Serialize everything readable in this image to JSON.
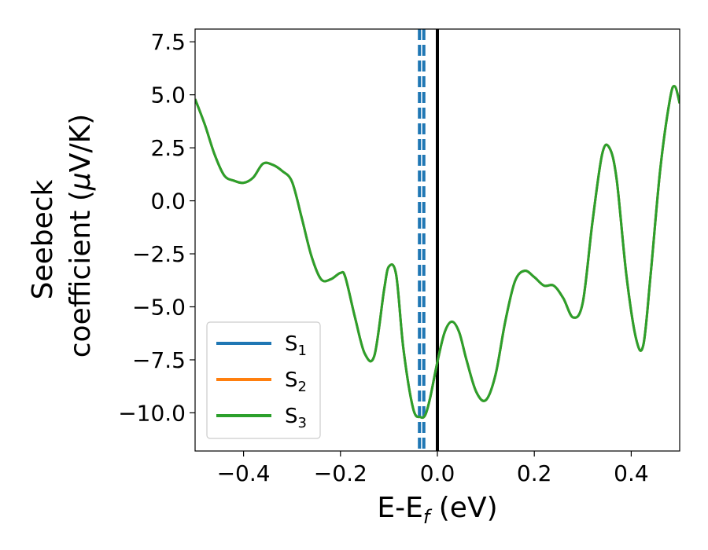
{
  "chart_data": {
    "type": "line",
    "xlabel": "E-E",
    "xlabel_sub": "f",
    "xlabel_unit": " (eV)",
    "ylabel_line1": "Seebeck",
    "ylabel_line2": "coefficient  (",
    "ylabel_mu": "μ",
    "ylabel_unit": "V/K)",
    "xlim": [
      -0.5,
      0.5
    ],
    "ylim": [
      -11.8,
      8.1
    ],
    "xticks": [
      -0.4,
      -0.2,
      0.0,
      0.2,
      0.4
    ],
    "xtick_labels": [
      "−0.4",
      "−0.2",
      "0.0",
      "0.2",
      "0.4"
    ],
    "yticks": [
      7.5,
      5.0,
      2.5,
      0.0,
      -2.5,
      -5.0,
      -7.5,
      -10.0
    ],
    "ytick_labels": [
      "7.5",
      "5.0",
      "2.5",
      "0.0",
      "−2.5",
      "−5.0",
      "−7.5",
      "−10.0"
    ],
    "legend_position": "lower-left",
    "vertical_lines": [
      {
        "x": -0.037,
        "style": "dashed",
        "color": "#1f77b4"
      },
      {
        "x": -0.028,
        "style": "dashed",
        "color": "#1f77b4"
      },
      {
        "x": 0.0,
        "style": "solid",
        "color": "#000000"
      }
    ],
    "x": [
      -0.5,
      -0.48,
      -0.46,
      -0.44,
      -0.42,
      -0.4,
      -0.38,
      -0.36,
      -0.34,
      -0.32,
      -0.3,
      -0.28,
      -0.26,
      -0.24,
      -0.22,
      -0.2,
      -0.19,
      -0.17,
      -0.15,
      -0.13,
      -0.11,
      -0.1,
      -0.085,
      -0.07,
      -0.05,
      -0.035,
      -0.025,
      -0.015,
      0.0,
      0.015,
      0.03,
      0.045,
      0.06,
      0.08,
      0.1,
      0.12,
      0.14,
      0.16,
      0.18,
      0.2,
      0.22,
      0.24,
      0.26,
      0.28,
      0.3,
      0.32,
      0.34,
      0.355,
      0.37,
      0.39,
      0.41,
      0.425,
      0.44,
      0.46,
      0.48,
      0.49,
      0.5
    ],
    "series": [
      {
        "name": "S",
        "sub": "1",
        "color": "#1f77b4",
        "values": [
          4.8,
          3.6,
          2.2,
          1.2,
          0.95,
          0.85,
          1.1,
          1.75,
          1.7,
          1.4,
          0.9,
          -0.8,
          -2.6,
          -3.7,
          -3.7,
          -3.4,
          -3.6,
          -5.5,
          -7.2,
          -7.3,
          -4.2,
          -3.1,
          -3.5,
          -7.0,
          -9.8,
          -10.2,
          -10.1,
          -9.3,
          -7.6,
          -6.2,
          -5.7,
          -6.2,
          -7.5,
          -9.0,
          -9.4,
          -8.2,
          -5.7,
          -3.8,
          -3.3,
          -3.6,
          -4.0,
          -4.0,
          -4.6,
          -5.5,
          -4.8,
          -1.0,
          2.2,
          2.5,
          1.0,
          -3.5,
          -6.5,
          -6.8,
          -3.5,
          1.5,
          4.8,
          5.4,
          4.6
        ]
      },
      {
        "name": "S",
        "sub": "2",
        "color": "#ff7f0e",
        "values": [
          4.8,
          3.6,
          2.2,
          1.2,
          0.95,
          0.85,
          1.1,
          1.75,
          1.7,
          1.4,
          0.9,
          -0.8,
          -2.6,
          -3.7,
          -3.7,
          -3.4,
          -3.6,
          -5.5,
          -7.2,
          -7.3,
          -4.2,
          -3.1,
          -3.5,
          -7.0,
          -9.8,
          -10.2,
          -10.1,
          -9.3,
          -7.6,
          -6.2,
          -5.7,
          -6.2,
          -7.5,
          -9.0,
          -9.4,
          -8.2,
          -5.7,
          -3.8,
          -3.3,
          -3.6,
          -4.0,
          -4.0,
          -4.6,
          -5.5,
          -4.8,
          -1.0,
          2.2,
          2.5,
          1.0,
          -3.5,
          -6.5,
          -6.8,
          -3.5,
          1.5,
          4.8,
          5.4,
          4.6
        ]
      },
      {
        "name": "S",
        "sub": "3",
        "color": "#2ca02c",
        "values": [
          4.8,
          3.6,
          2.2,
          1.2,
          0.95,
          0.85,
          1.1,
          1.75,
          1.7,
          1.4,
          0.9,
          -0.8,
          -2.6,
          -3.7,
          -3.7,
          -3.4,
          -3.6,
          -5.5,
          -7.2,
          -7.3,
          -4.2,
          -3.1,
          -3.5,
          -7.0,
          -9.8,
          -10.2,
          -10.1,
          -9.3,
          -7.6,
          -6.2,
          -5.7,
          -6.2,
          -7.5,
          -9.0,
          -9.4,
          -8.2,
          -5.7,
          -3.8,
          -3.3,
          -3.6,
          -4.0,
          -4.0,
          -4.6,
          -5.5,
          -4.8,
          -1.0,
          2.2,
          2.5,
          1.0,
          -3.5,
          -6.5,
          -6.8,
          -3.5,
          1.5,
          4.8,
          5.4,
          4.6
        ]
      }
    ]
  }
}
